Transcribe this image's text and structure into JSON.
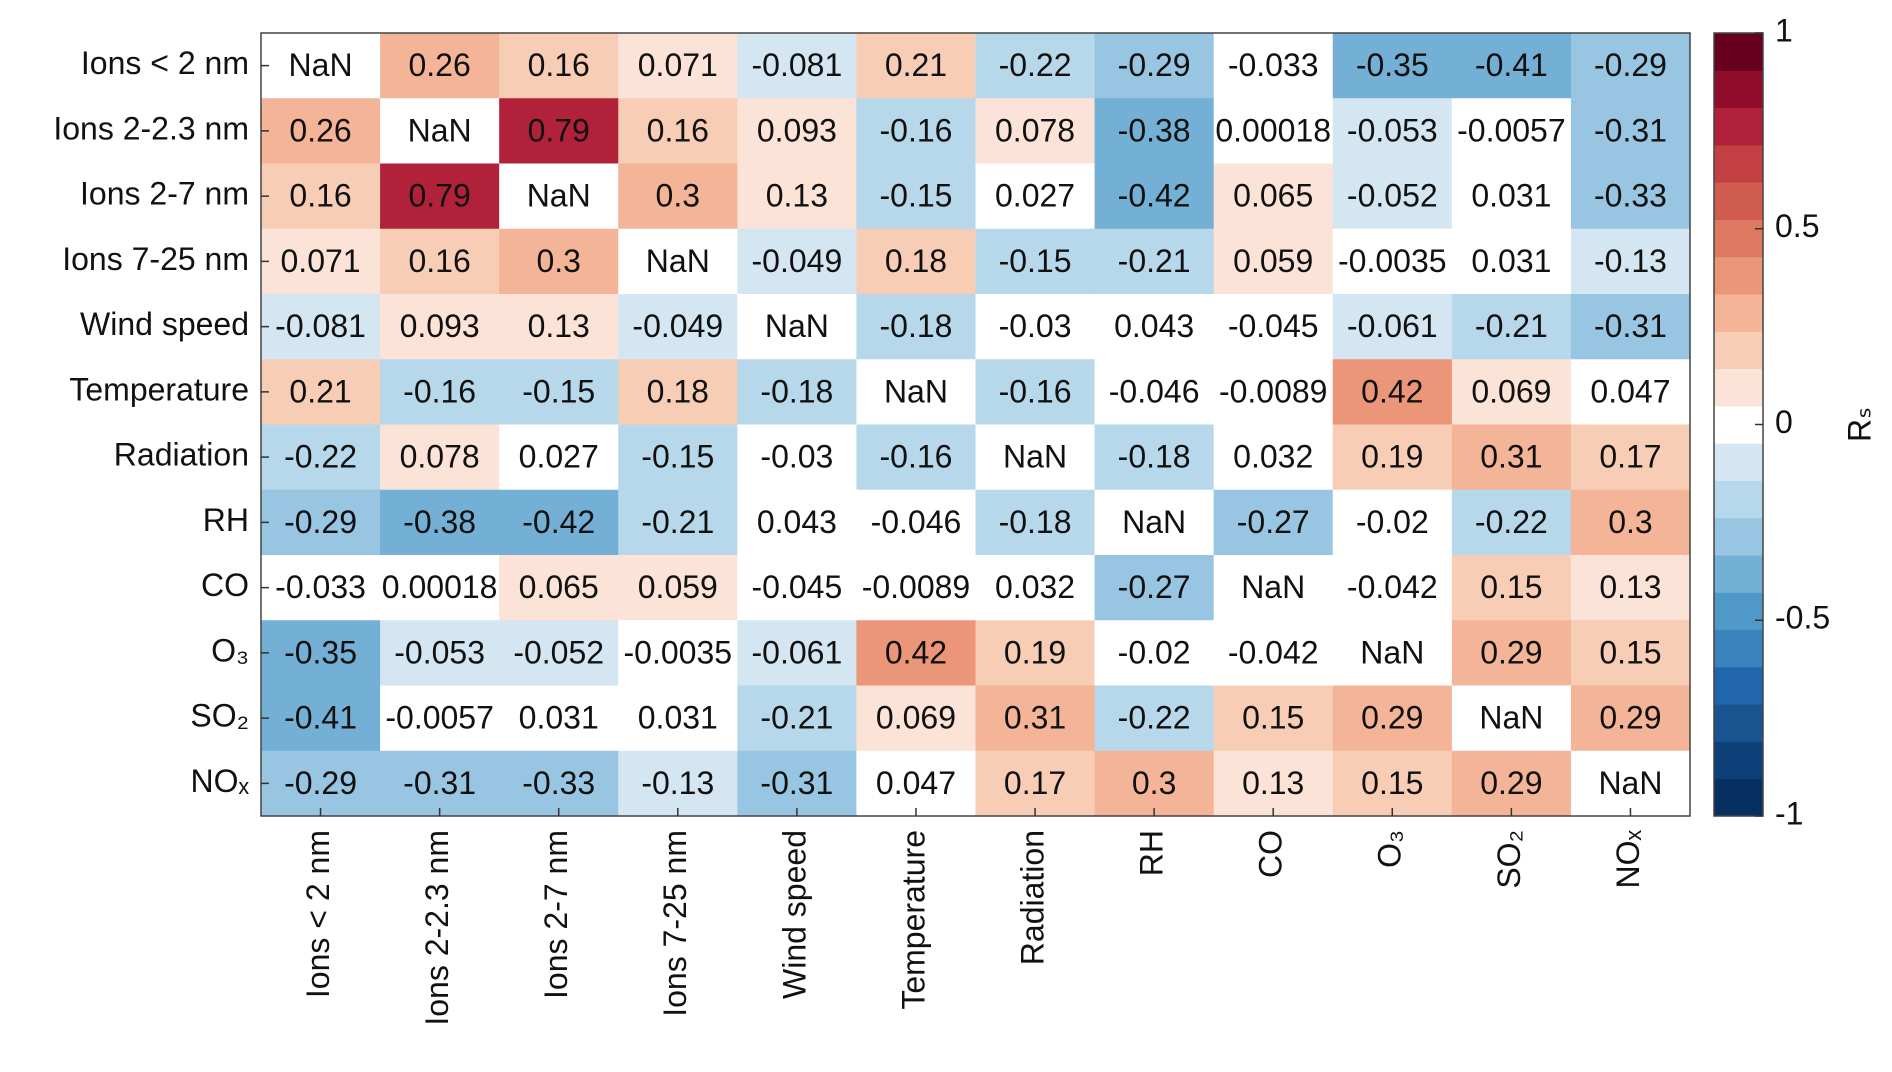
{
  "chart_data": {
    "type": "heatmap",
    "categories": [
      "Ions < 2 nm",
      "Ions 2-2.3 nm",
      "Ions 2-7 nm",
      "Ions 7-25 nm",
      "Wind speed",
      "Temperature",
      "Radiation",
      "RH",
      "CO",
      "O₃",
      "SO₂",
      "NOₓ"
    ],
    "values": [
      [
        null,
        0.26,
        0.16,
        0.071,
        -0.081,
        0.21,
        -0.22,
        -0.29,
        -0.033,
        -0.35,
        -0.41,
        -0.29
      ],
      [
        0.26,
        null,
        0.79,
        0.16,
        0.093,
        -0.16,
        0.078,
        -0.38,
        0.00018,
        -0.053,
        -0.0057,
        -0.31
      ],
      [
        0.16,
        0.79,
        null,
        0.3,
        0.13,
        -0.15,
        0.027,
        -0.42,
        0.065,
        -0.052,
        0.031,
        -0.33
      ],
      [
        0.071,
        0.16,
        0.3,
        null,
        -0.049,
        0.18,
        -0.15,
        -0.21,
        0.059,
        -0.0035,
        0.031,
        -0.13
      ],
      [
        -0.081,
        0.093,
        0.13,
        -0.049,
        null,
        -0.18,
        -0.03,
        0.043,
        -0.045,
        -0.061,
        -0.21,
        -0.31
      ],
      [
        0.21,
        -0.16,
        -0.15,
        0.18,
        -0.18,
        null,
        -0.16,
        -0.046,
        -0.0089,
        0.42,
        0.069,
        0.047
      ],
      [
        -0.22,
        0.078,
        0.027,
        -0.15,
        -0.03,
        -0.16,
        null,
        -0.18,
        0.032,
        0.19,
        0.31,
        0.17
      ],
      [
        -0.29,
        -0.38,
        -0.42,
        -0.21,
        0.043,
        -0.046,
        -0.18,
        null,
        -0.27,
        -0.02,
        -0.22,
        0.3
      ],
      [
        -0.033,
        0.00018,
        0.065,
        0.059,
        -0.045,
        -0.0089,
        0.032,
        -0.27,
        null,
        -0.042,
        0.15,
        0.13
      ],
      [
        -0.35,
        -0.053,
        -0.052,
        -0.0035,
        -0.061,
        0.42,
        0.19,
        -0.02,
        -0.042,
        null,
        0.29,
        0.15
      ],
      [
        -0.41,
        -0.0057,
        0.031,
        0.031,
        -0.21,
        0.069,
        0.31,
        -0.22,
        0.15,
        0.29,
        null,
        0.29
      ],
      [
        -0.29,
        -0.31,
        -0.33,
        -0.13,
        -0.31,
        0.047,
        0.17,
        0.3,
        0.13,
        0.15,
        0.29,
        null
      ]
    ],
    "value_labels": [
      [
        "NaN",
        "0.26",
        "0.16",
        "0.071",
        "-0.081",
        "0.21",
        "-0.22",
        "-0.29",
        "-0.033",
        "-0.35",
        "-0.41",
        "-0.29"
      ],
      [
        "0.26",
        "NaN",
        "0.79",
        "0.16",
        "0.093",
        "-0.16",
        "0.078",
        "-0.38",
        "0.00018",
        "-0.053",
        "-0.0057",
        "-0.31"
      ],
      [
        "0.16",
        "0.79",
        "NaN",
        "0.3",
        "0.13",
        "-0.15",
        "0.027",
        "-0.42",
        "0.065",
        "-0.052",
        "0.031",
        "-0.33"
      ],
      [
        "0.071",
        "0.16",
        "0.3",
        "NaN",
        "-0.049",
        "0.18",
        "-0.15",
        "-0.21",
        "0.059",
        "-0.0035",
        "0.031",
        "-0.13"
      ],
      [
        "-0.081",
        "0.093",
        "0.13",
        "-0.049",
        "NaN",
        "-0.18",
        "-0.03",
        "0.043",
        "-0.045",
        "-0.061",
        "-0.21",
        "-0.31"
      ],
      [
        "0.21",
        "-0.16",
        "-0.15",
        "0.18",
        "-0.18",
        "NaN",
        "-0.16",
        "-0.046",
        "-0.0089",
        "0.42",
        "0.069",
        "0.047"
      ],
      [
        "-0.22",
        "0.078",
        "0.027",
        "-0.15",
        "-0.03",
        "-0.16",
        "NaN",
        "-0.18",
        "0.032",
        "0.19",
        "0.31",
        "0.17"
      ],
      [
        "-0.29",
        "-0.38",
        "-0.42",
        "-0.21",
        "0.043",
        "-0.046",
        "-0.18",
        "NaN",
        "-0.27",
        "-0.02",
        "-0.22",
        "0.3"
      ],
      [
        "-0.033",
        "0.00018",
        "0.065",
        "0.059",
        "-0.045",
        "-0.0089",
        "0.032",
        "-0.27",
        "NaN",
        "-0.042",
        "0.15",
        "0.13"
      ],
      [
        "-0.35",
        "-0.053",
        "-0.052",
        "-0.0035",
        "-0.061",
        "0.42",
        "0.19",
        "-0.02",
        "-0.042",
        "NaN",
        "0.29",
        "0.15"
      ],
      [
        "-0.41",
        "-0.0057",
        "0.031",
        "0.031",
        "-0.21",
        "0.069",
        "0.31",
        "-0.22",
        "0.15",
        "0.29",
        "NaN",
        "0.29"
      ],
      [
        "-0.29",
        "-0.31",
        "-0.33",
        "-0.13",
        "-0.31",
        "0.047",
        "0.17",
        "0.3",
        "0.13",
        "0.15",
        "0.29",
        "NaN"
      ]
    ],
    "colorbar_label": "Rₛ",
    "clim": [
      -1,
      1
    ],
    "cticks": [
      -1,
      -0.5,
      0,
      0.5,
      1
    ],
    "colormap": [
      "#053061",
      "#0d3f78",
      "#1a5490",
      "#2166ac",
      "#3a83bd",
      "#4f98c8",
      "#74afd5",
      "#98c5e1",
      "#b7d7ea",
      "#d4e6f1",
      "#ffffff",
      "#fbe3d8",
      "#f8cdb6",
      "#f4b497",
      "#ec9679",
      "#dd7a61",
      "#cf5c4f",
      "#c24043",
      "#b2213a",
      "#8f0d2b",
      "#67001f"
    ],
    "nan_color": "#ffffff"
  }
}
